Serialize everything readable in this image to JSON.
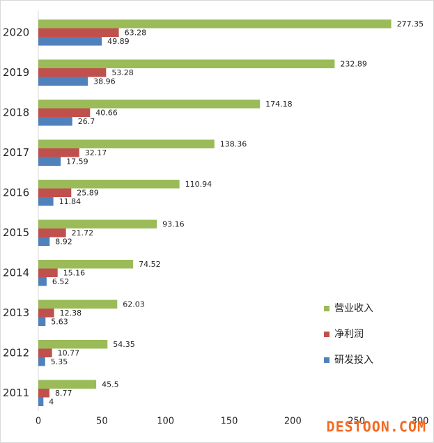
{
  "chart_data": {
    "type": "hbar",
    "categories": [
      "2020",
      "2019",
      "2018",
      "2017",
      "2016",
      "2015",
      "2014",
      "2013",
      "2012",
      "2011"
    ],
    "series": [
      {
        "name": "营业收入",
        "color": "#9bbb59",
        "values": [
          277.35,
          232.89,
          174.18,
          138.36,
          110.94,
          93.16,
          74.52,
          62.03,
          54.35,
          45.5
        ]
      },
      {
        "name": "净利润",
        "color": "#c0504d",
        "values": [
          63.28,
          53.28,
          40.66,
          32.17,
          25.89,
          21.72,
          15.16,
          12.38,
          10.77,
          8.77
        ]
      },
      {
        "name": "研发投入",
        "color": "#4f81bd",
        "values": [
          49.89,
          38.96,
          26.7,
          17.59,
          11.84,
          8.92,
          6.52,
          5.63,
          5.35,
          4
        ]
      }
    ],
    "xlim": [
      0,
      300
    ],
    "xticks": [
      0,
      50,
      100,
      150,
      200,
      250,
      300
    ],
    "legend": "lower-right",
    "watermark": "DESTOON.COM"
  }
}
